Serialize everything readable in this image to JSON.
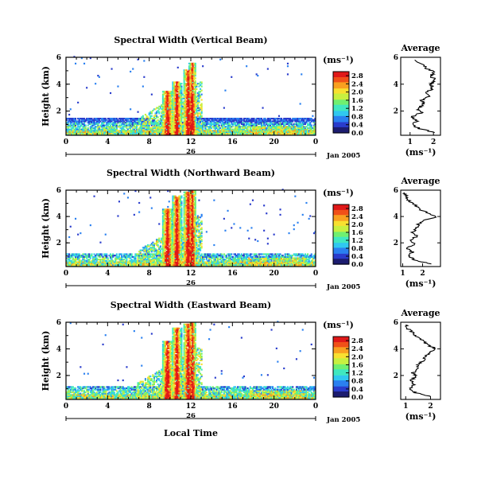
{
  "figure": {
    "xlabel": "Local Time",
    "date_label": "Jan 2005",
    "day_label": "26"
  },
  "chart_data": [
    {
      "type": "heatmap",
      "title": "Spectral Width (Vertical Beam)",
      "ylabel": "Height (km)",
      "xlabel": "Local Time",
      "x_ticks": [
        "0",
        "4",
        "8",
        "12",
        "16",
        "20",
        "0"
      ],
      "xlim": [
        0,
        24
      ],
      "y_ticks": [
        "2",
        "4",
        "6"
      ],
      "ylim": [
        0.2,
        6.0
      ],
      "colorbar": {
        "unit": "(ms⁻¹)",
        "ticks": [
          "0.0",
          "0.4",
          "0.8",
          "1.2",
          "1.6",
          "2.0",
          "2.4",
          "2.8"
        ],
        "range": [
          0,
          3.0
        ]
      },
      "average_profile": {
        "title": "Average",
        "xlabel": "(ms⁻¹)",
        "x_ticks": [
          "1",
          "2"
        ],
        "xlim": [
          0.6,
          2.3
        ],
        "y_ticks": [
          "2",
          "4",
          "6"
        ],
        "ylim": [
          0.2,
          6.0
        ],
        "heights": [
          0.4,
          0.7,
          1.0,
          1.3,
          1.6,
          1.9,
          2.2,
          2.5,
          2.8,
          3.1,
          3.4,
          3.7,
          4.0,
          4.3,
          4.6,
          4.9,
          5.2,
          5.5,
          5.8
        ],
        "values": [
          2.0,
          1.4,
          1.1,
          1.3,
          1.1,
          1.5,
          1.3,
          1.6,
          1.5,
          1.8,
          1.7,
          2.0,
          1.9,
          2.1,
          1.9,
          2.0,
          1.7,
          1.5,
          1.2
        ]
      }
    },
    {
      "type": "heatmap",
      "title": "Spectral Width (Northward Beam)",
      "ylabel": "Height (km)",
      "xlabel": "Local Time",
      "x_ticks": [
        "0",
        "4",
        "8",
        "12",
        "16",
        "20",
        "0"
      ],
      "xlim": [
        0,
        24
      ],
      "y_ticks": [
        "2",
        "4",
        "6"
      ],
      "ylim": [
        0.2,
        6.0
      ],
      "colorbar": {
        "unit": "(ms⁻¹)",
        "ticks": [
          "0.0",
          "0.4",
          "0.8",
          "1.2",
          "1.6",
          "2.0",
          "2.4",
          "2.8"
        ],
        "range": [
          0,
          3.0
        ]
      },
      "average_profile": {
        "title": "Average",
        "xlabel": "(ms⁻¹)",
        "x_ticks": [
          "1",
          "2"
        ],
        "xlim": [
          0.9,
          2.9
        ],
        "y_ticks": [
          "2",
          "4",
          "6"
        ],
        "ylim": [
          0.2,
          6.0
        ],
        "heights": [
          0.4,
          0.7,
          1.0,
          1.3,
          1.6,
          1.9,
          2.2,
          2.5,
          2.8,
          3.1,
          3.4,
          3.7,
          4.0,
          4.3,
          4.6,
          4.9,
          5.2,
          5.5,
          5.8
        ],
        "values": [
          2.4,
          1.6,
          1.3,
          1.5,
          1.2,
          1.6,
          1.4,
          1.7,
          1.5,
          1.7,
          1.8,
          2.1,
          2.7,
          2.2,
          1.8,
          1.6,
          1.3,
          1.2,
          1.1
        ]
      }
    },
    {
      "type": "heatmap",
      "title": "Spectral Width (Eastward Beam)",
      "ylabel": "Height (km)",
      "xlabel": "Local Time",
      "x_ticks": [
        "0",
        "4",
        "8",
        "12",
        "16",
        "20",
        "0"
      ],
      "xlim": [
        0,
        24
      ],
      "y_ticks": [
        "2",
        "4",
        "6"
      ],
      "ylim": [
        0.2,
        6.0
      ],
      "colorbar": {
        "unit": "(ms⁻¹)",
        "ticks": [
          "0.0",
          "0.4",
          "0.8",
          "1.2",
          "1.6",
          "2.0",
          "2.4",
          "2.8"
        ],
        "range": [
          0,
          3.0
        ]
      },
      "average_profile": {
        "title": "Average",
        "xlabel": "(ms⁻¹)",
        "x_ticks": [
          "1",
          "2"
        ],
        "xlim": [
          0.8,
          2.4
        ],
        "y_ticks": [
          "2",
          "4",
          "6"
        ],
        "ylim": [
          0.2,
          6.0
        ],
        "heights": [
          0.4,
          0.7,
          1.0,
          1.3,
          1.6,
          1.9,
          2.2,
          2.5,
          2.8,
          3.1,
          3.4,
          3.7,
          4.0,
          4.3,
          4.6,
          4.9,
          5.2,
          5.5,
          5.8
        ],
        "values": [
          2.0,
          1.4,
          1.2,
          1.3,
          1.2,
          1.4,
          1.3,
          1.5,
          1.5,
          1.7,
          1.8,
          2.0,
          2.2,
          1.9,
          1.7,
          1.5,
          1.3,
          1.1,
          1.0
        ]
      }
    }
  ],
  "colormap": [
    "#1c1c70",
    "#2a3ccc",
    "#2a80f0",
    "#30c8f0",
    "#40e8c0",
    "#70f070",
    "#c8f040",
    "#f8e030",
    "#f8a020",
    "#f05018",
    "#e01818"
  ]
}
